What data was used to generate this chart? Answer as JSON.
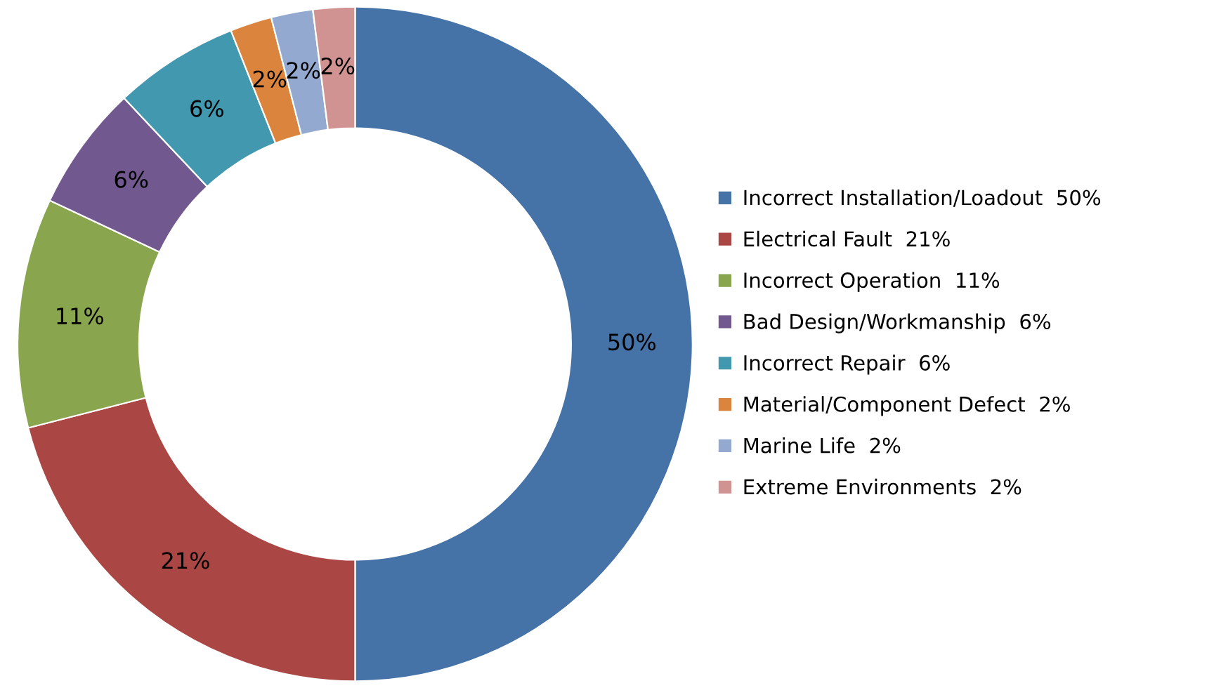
{
  "chart_data": {
    "type": "donut",
    "categories": [
      "Incorrect Installation/Loadout  50%",
      "Electrical Fault  21%",
      "Incorrect Operation  11%",
      "Bad Design/Workmanship  6%",
      "Incorrect Repair  6%",
      "Material/Component Defect  2%",
      "Marine Life  2%",
      "Extreme Environments  2%"
    ],
    "values": [
      50,
      21,
      11,
      6,
      6,
      2,
      2,
      2
    ],
    "value_labels": [
      "50%",
      "21%",
      "11%",
      "6%",
      "6%",
      "2%",
      "2%",
      "2%"
    ],
    "colors": [
      "#4572a7",
      "#aa4643",
      "#89a54e",
      "#71588f",
      "#4198af",
      "#db843d",
      "#93a9cf",
      "#d19392"
    ],
    "legend": "right"
  }
}
